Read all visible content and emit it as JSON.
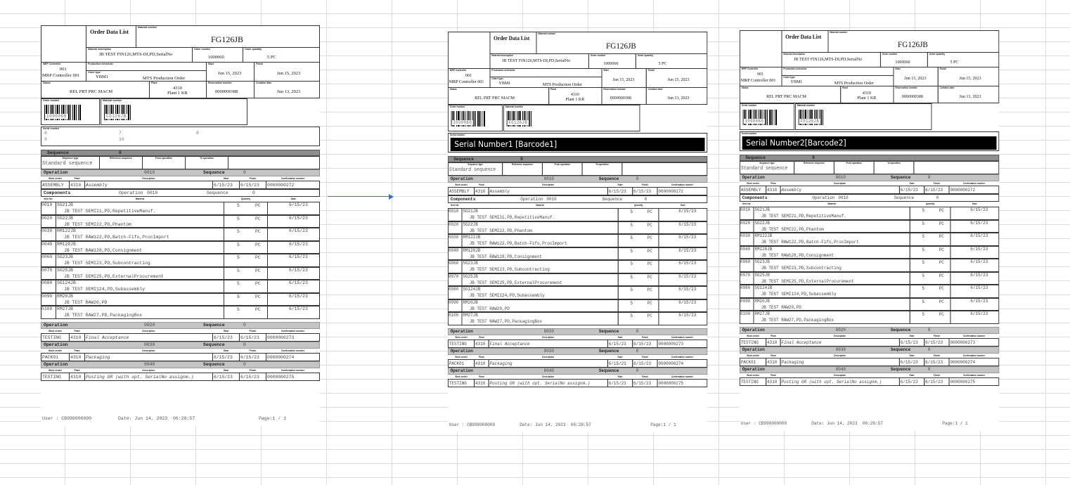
{
  "report": {
    "title": "Order Data List",
    "material_number_label": "Material number",
    "material_number": "FG126JB",
    "material_description_label": "Material description",
    "material_description": "JB TEST FIN126,MTS-DI,PD,SerialNo",
    "order_number_label": "Order number",
    "order_number": "1000060",
    "order_quantity_label": "Order quantity",
    "order_quantity": "5  PC",
    "mrp_controller_label": "MRP Controller",
    "mrp_controller_code": "001",
    "mrp_controller_name": "MRP Controller 001",
    "production_scheduler_label": "Production scheduler",
    "order_type_label": "Order type",
    "order_type_code": "YBM1",
    "order_type_name": "MTS Production Order",
    "start_label": "Start",
    "start": "Jun 15, 2023",
    "finish_label": "Finish",
    "finish": "Jun 15, 2023",
    "status_label": "Status",
    "status": "REL  PRT  PRC  MACM",
    "plant_label": "Plant",
    "plant_code": "4310",
    "plant_name": "Plant 1 KR",
    "reservation_label": "Reservation number",
    "reservation": "0000000388",
    "creation_label": "Creation date",
    "creation": "Jun 13, 2023",
    "barcode_order_label": "Order number",
    "barcode_material_label": "Material number",
    "serial_label": "Serial number"
  },
  "sequence": {
    "label": "Sequence",
    "value": "0",
    "headers": [
      "Sequence type",
      "Reference sequence",
      "From operation",
      "To operation"
    ],
    "type_value": "Standard sequence"
  },
  "op_headers": [
    "Work center",
    "Plant",
    "Description",
    "Start",
    "Finish",
    "Confirmation number"
  ],
  "operations": [
    {
      "label": "Operation",
      "number": "0010",
      "seq_label": "Sequence",
      "seq": "0",
      "work_center": "ASSEMBLY",
      "plant": "4310",
      "description": "Assembly",
      "start": "6/15/23",
      "finish": "6/15/23",
      "confirmation": "0000000272"
    },
    {
      "label": "Operation",
      "number": "0020",
      "seq_label": "Sequence",
      "seq": "0",
      "work_center": "TESTING",
      "plant": "4310",
      "description": "Final Acceptance",
      "start": "6/15/23",
      "finish": "6/15/23",
      "confirmation": "0000000273"
    },
    {
      "label": "Operation",
      "number": "0030",
      "seq_label": "Sequence",
      "seq": "0",
      "work_center": "PACK01",
      "plant": "4310",
      "description": "Packaging",
      "start": "6/15/23",
      "finish": "6/15/23",
      "confirmation": "0000000274"
    },
    {
      "label": "Operation",
      "number": "0040",
      "seq_label": "Sequence",
      "seq": "0",
      "work_center": "TESTING",
      "plant": "4310",
      "description": "Posting GR (with opt. SerialNo assignm.)",
      "start": "6/15/23",
      "finish": "6/15/23",
      "confirmation": "0000000275"
    }
  ],
  "components": {
    "label": "Components",
    "op_label": "Operation",
    "op": "0010",
    "seq_label": "Sequence",
    "seq": "0",
    "headers": [
      "Item No.",
      "Material",
      "Quantity",
      "Date"
    ],
    "items": [
      {
        "no": "0010",
        "material": "SG21JB",
        "description": "JB TEST SEMI21,PD,RepetitiveManuf.",
        "qty": "5",
        "unit": "PC",
        "date": "6/15/23"
      },
      {
        "no": "0020",
        "material": "SG22JB",
        "description": "JB TEST SEMI22,PD,Phantom",
        "qty": "5",
        "unit": "PC",
        "date": "6/15/23"
      },
      {
        "no": "0030",
        "material": "RM122JB",
        "description": "JB TEST RAW122,PD,Batch-Fifo,ProcImport",
        "qty": "5",
        "unit": "PC",
        "date": "6/15/23"
      },
      {
        "no": "0040",
        "material": "RM128JB",
        "description": "JB TEST RAW128,PD,Consignment",
        "qty": "5",
        "unit": "PC",
        "date": "6/15/23"
      },
      {
        "no": "0060",
        "material": "SG23JB",
        "description": "JB TEST SEMI23,PD,Subcontracting",
        "qty": "5",
        "unit": "PC",
        "date": "6/15/23"
      },
      {
        "no": "0070",
        "material": "SG25JB",
        "description": "JB TEST SEMI25,PD,ExternalProcurement",
        "qty": "5",
        "unit": "PC",
        "date": "6/15/23"
      },
      {
        "no": "0080",
        "material": "SG124JB",
        "description": "JB TEST SEMI124,PD,Subassembly",
        "qty": "5",
        "unit": "PC",
        "date": "6/15/23"
      },
      {
        "no": "0090",
        "material": "RM20JB",
        "description": "JB TEST RAW20,PD",
        "qty": "5",
        "unit": "PC",
        "date": "6/15/23"
      },
      {
        "no": "0100",
        "material": "RM27JB",
        "description": "JB TEST RAW27,PD,PackagingBox",
        "qty": "5",
        "unit": "PC",
        "date": "6/15/23"
      }
    ]
  },
  "footer": {
    "user": "User : CB998000000",
    "date": "Date: Jun 14, 2023  06:28:57",
    "page": "Page:1 / 1"
  },
  "documents": [
    {
      "serial_numbers": [
        "6",
        "7",
        "8",
        "9",
        "10"
      ]
    },
    {
      "serial_banner": "Serial Number1 [Barcode1]"
    },
    {
      "serial_banner": "Serial Number2[Barcode2]"
    }
  ],
  "colors": {
    "arrow": "#3a6fc4",
    "sequence_bar": "#8e8e8e",
    "operation_bar": "#c4c4c4"
  }
}
